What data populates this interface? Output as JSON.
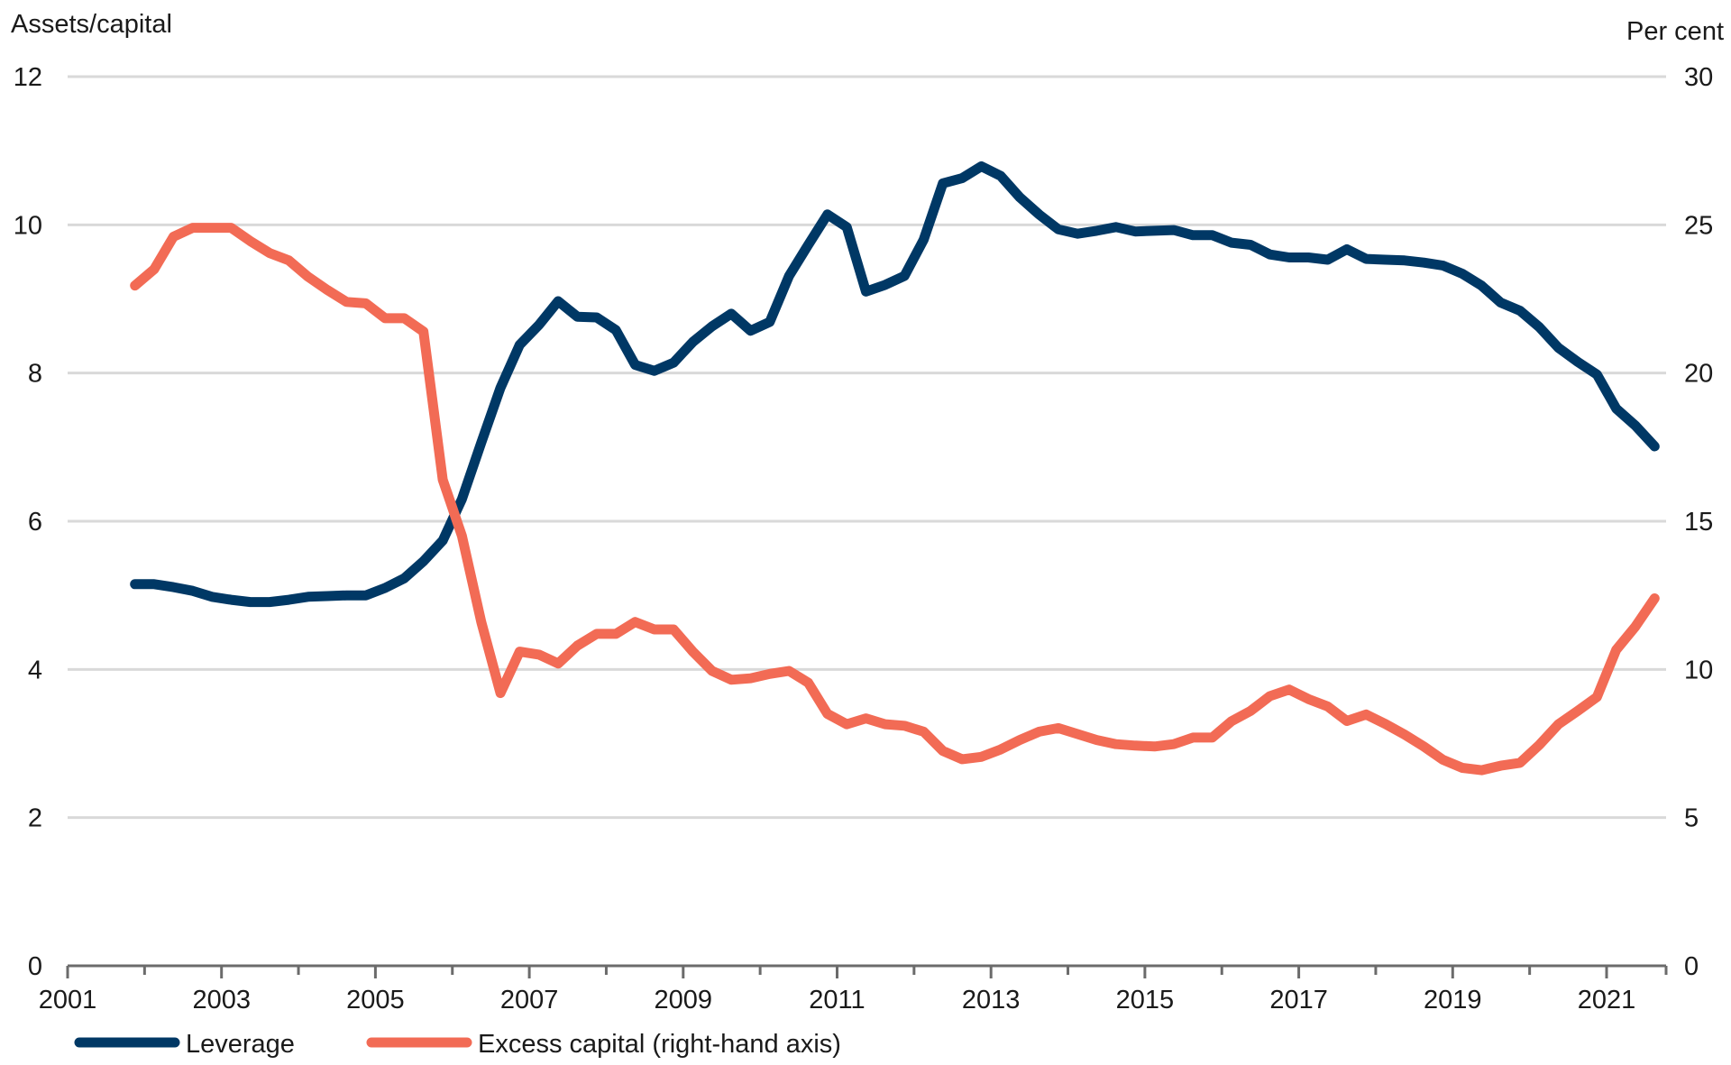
{
  "chart_data": {
    "type": "line",
    "title": "",
    "y_left": {
      "label": "Assets/capital",
      "range": [
        0,
        12
      ],
      "ticks": [
        0,
        2,
        4,
        6,
        8,
        10,
        12
      ]
    },
    "y_right": {
      "label": "Per cent",
      "range": [
        0,
        30
      ],
      "ticks": [
        0,
        5,
        10,
        15,
        20,
        25,
        30
      ]
    },
    "x_axis": {
      "range": [
        2001,
        2021.75
      ],
      "ticks": [
        "2001",
        "2003",
        "2005",
        "2007",
        "2009",
        "2011",
        "2013",
        "2015",
        "2017",
        "2019",
        "2021"
      ]
    },
    "grid": "horizontal",
    "legend_position": "bottom-left",
    "series": [
      {
        "name": "Leverage",
        "axis": "left",
        "color": "#003865",
        "x": [
          2001.875,
          2002.125,
          2002.375,
          2002.625,
          2002.875,
          2003.125,
          2003.375,
          2003.625,
          2003.875,
          2004.125,
          2004.375,
          2004.625,
          2004.875,
          2005.125,
          2005.375,
          2005.625,
          2005.875,
          2006.125,
          2006.375,
          2006.625,
          2006.875,
          2007.125,
          2007.375,
          2007.625,
          2007.875,
          2008.125,
          2008.375,
          2008.625,
          2008.875,
          2009.125,
          2009.375,
          2009.625,
          2009.875,
          2010.125,
          2010.375,
          2010.625,
          2010.875,
          2011.125,
          2011.375,
          2011.625,
          2011.875,
          2012.125,
          2012.375,
          2012.625,
          2012.875,
          2013.125,
          2013.375,
          2013.625,
          2013.875,
          2014.125,
          2014.375,
          2014.625,
          2014.875,
          2015.125,
          2015.375,
          2015.625,
          2015.875,
          2016.125,
          2016.375,
          2016.625,
          2016.875,
          2017.125,
          2017.375,
          2017.625,
          2017.875,
          2018.125,
          2018.375,
          2018.625,
          2018.875,
          2019.125,
          2019.375,
          2019.625,
          2019.875,
          2020.125,
          2020.375,
          2020.625,
          2020.875,
          2021.125,
          2021.375,
          2021.625
        ],
        "values": [
          5.15,
          5.15,
          5.11,
          5.06,
          4.98,
          4.94,
          4.91,
          4.91,
          4.94,
          4.98,
          4.99,
          5.0,
          5.0,
          5.1,
          5.23,
          5.46,
          5.74,
          6.3,
          7.06,
          7.8,
          8.38,
          8.65,
          8.97,
          8.76,
          8.75,
          8.58,
          8.11,
          8.03,
          8.14,
          8.42,
          8.63,
          8.8,
          8.57,
          8.69,
          9.31,
          9.73,
          10.14,
          9.97,
          9.1,
          9.19,
          9.31,
          9.8,
          10.56,
          10.63,
          10.79,
          10.66,
          10.37,
          10.14,
          9.94,
          9.88,
          9.92,
          9.97,
          9.91,
          9.92,
          9.93,
          9.86,
          9.86,
          9.76,
          9.73,
          9.6,
          9.56,
          9.56,
          9.53,
          9.67,
          9.54,
          9.53,
          9.52,
          9.49,
          9.45,
          9.34,
          9.18,
          8.95,
          8.84,
          8.62,
          8.34,
          8.15,
          7.98,
          7.52,
          7.29,
          7.01
        ]
      },
      {
        "name": "Excess capital (right-hand axis)",
        "axis": "right",
        "color": "#F26B55",
        "x": [
          2001.875,
          2002.125,
          2002.375,
          2002.625,
          2002.875,
          2003.125,
          2003.375,
          2003.625,
          2003.875,
          2004.125,
          2004.375,
          2004.625,
          2004.875,
          2005.125,
          2005.375,
          2005.625,
          2005.875,
          2006.125,
          2006.375,
          2006.625,
          2006.875,
          2007.125,
          2007.375,
          2007.625,
          2007.875,
          2008.125,
          2008.375,
          2008.625,
          2008.875,
          2009.125,
          2009.375,
          2009.625,
          2009.875,
          2010.125,
          2010.375,
          2010.625,
          2010.875,
          2011.125,
          2011.375,
          2011.625,
          2011.875,
          2012.125,
          2012.375,
          2012.625,
          2012.875,
          2013.125,
          2013.375,
          2013.625,
          2013.875,
          2014.125,
          2014.375,
          2014.625,
          2014.875,
          2015.125,
          2015.375,
          2015.625,
          2015.875,
          2016.125,
          2016.375,
          2016.625,
          2016.875,
          2017.125,
          2017.375,
          2017.625,
          2017.875,
          2018.125,
          2018.375,
          2018.625,
          2018.875,
          2019.125,
          2019.375,
          2019.625,
          2019.875,
          2020.125,
          2020.375,
          2020.625,
          2020.875,
          2021.125,
          2021.375,
          2021.625
        ],
        "values": [
          22.95,
          23.5,
          24.6,
          24.9,
          24.9,
          24.9,
          24.45,
          24.05,
          23.8,
          23.25,
          22.8,
          22.4,
          22.35,
          21.85,
          21.85,
          21.4,
          16.4,
          14.5,
          11.6,
          9.2,
          10.6,
          10.5,
          10.2,
          10.8,
          11.2,
          11.2,
          11.6,
          11.35,
          11.35,
          10.6,
          9.95,
          9.65,
          9.7,
          9.85,
          9.95,
          9.55,
          8.5,
          8.15,
          8.35,
          8.15,
          8.1,
          7.9,
          7.25,
          6.97,
          7.05,
          7.3,
          7.62,
          7.9,
          8.02,
          7.82,
          7.62,
          7.48,
          7.43,
          7.4,
          7.48,
          7.7,
          7.7,
          8.25,
          8.6,
          9.1,
          9.32,
          9.0,
          8.75,
          8.26,
          8.48,
          8.16,
          7.8,
          7.4,
          6.95,
          6.68,
          6.6,
          6.75,
          6.85,
          7.45,
          8.15,
          8.6,
          9.07,
          10.66,
          11.45,
          12.4
        ]
      }
    ]
  }
}
